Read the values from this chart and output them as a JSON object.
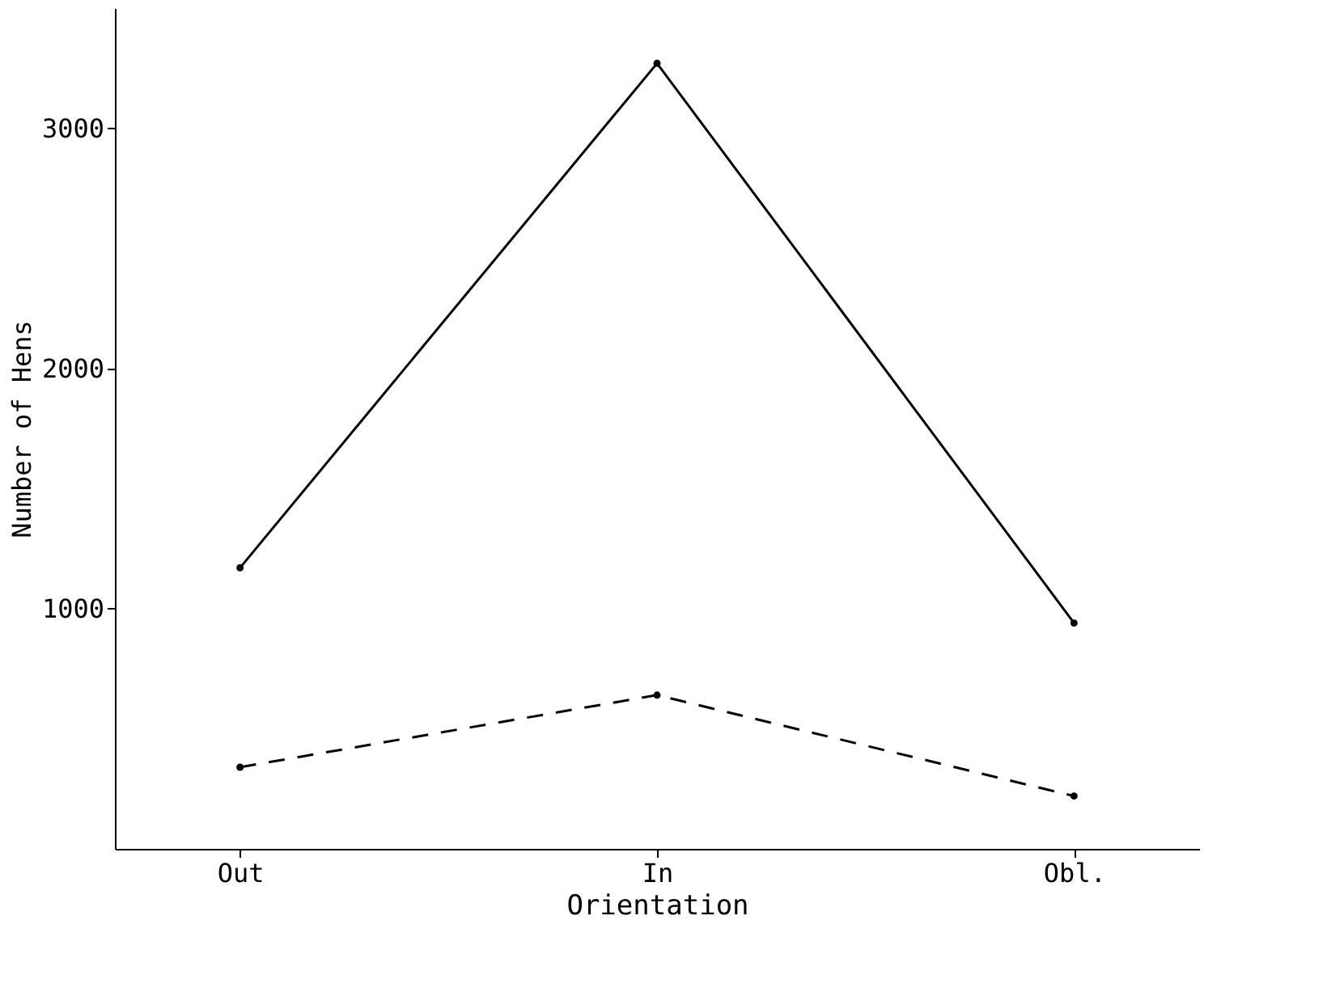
{
  "chart_data": {
    "type": "line",
    "xlabel": "Orientation",
    "ylabel": "Number of Hens",
    "categories": [
      "Out",
      "In",
      "Obl."
    ],
    "series": [
      {
        "color": "#000000",
        "line_style": "solid",
        "values": [
          1170,
          3270,
          940
        ]
      },
      {
        "color": "#000000",
        "line_style": "dashed",
        "values": [
          340,
          640,
          220
        ]
      }
    ],
    "ylim": [
      0,
      3500
    ],
    "yticks": [
      1000,
      2000,
      3000
    ],
    "marker": "circle"
  }
}
